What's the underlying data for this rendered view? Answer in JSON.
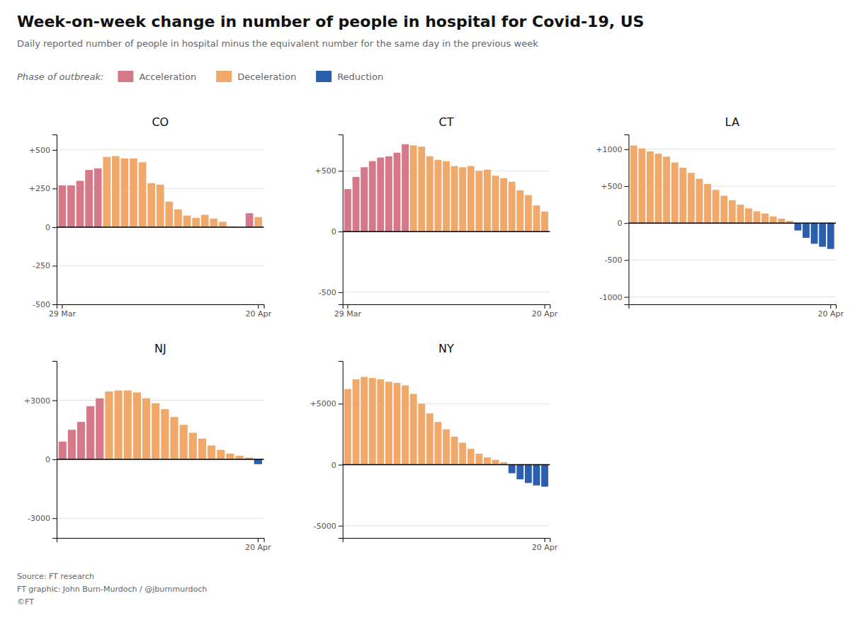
{
  "title": "Week-on-week change in number of people in hospital for Covid-19, US",
  "subtitle": "Daily reported number of people in hospital minus the equivalent number for the same day in the previous week",
  "legend_title": "Phase of outbreak:",
  "legend_entries": [
    {
      "name": "Acceleration",
      "color": "#d4788a"
    },
    {
      "name": "Deceleration",
      "color": "#f0a96a"
    },
    {
      "name": "Reduction",
      "color": "#2b5fad"
    }
  ],
  "source": "Source: FT research\nFT graphic: John Burn-Murdoch / @jburnmurdoch\n©FT",
  "chart_data": [
    {
      "type": "bar",
      "title": "CO",
      "categories": [
        "29 Mar",
        null,
        null,
        null,
        null,
        null,
        null,
        null,
        null,
        null,
        null,
        null,
        null,
        null,
        null,
        null,
        null,
        null,
        null,
        null,
        null,
        null,
        "20 Apr"
      ],
      "values": [
        270,
        270,
        300,
        370,
        380,
        455,
        460,
        445,
        445,
        420,
        285,
        275,
        165,
        115,
        75,
        60,
        80,
        55,
        35,
        5,
        0,
        90,
        65
      ],
      "colors": [
        "#d4788a",
        "#d4788a",
        "#d4788a",
        "#d4788a",
        "#d4788a",
        "#f0a96a",
        "#f0a96a",
        "#f0a96a",
        "#f0a96a",
        "#f0a96a",
        "#f0a96a",
        "#f0a96a",
        "#f0a96a",
        "#f0a96a",
        "#f0a96a",
        "#f0a96a",
        "#f0a96a",
        "#f0a96a",
        "#f0a96a",
        "#f0a96a",
        "#f0a96a",
        "#d4788a",
        "#f0a96a"
      ],
      "ylim": [
        -500,
        600
      ],
      "yticks": [
        -500,
        -250,
        0,
        {
          "value": 250,
          "label": "+250"
        },
        {
          "value": 500,
          "label": "+500"
        }
      ],
      "grid": true
    },
    {
      "type": "bar",
      "title": "CT",
      "categories": [
        "29 Mar",
        null,
        null,
        null,
        null,
        null,
        null,
        null,
        null,
        null,
        null,
        null,
        null,
        null,
        null,
        null,
        null,
        null,
        null,
        null,
        null,
        null,
        null,
        null,
        "20 Apr"
      ],
      "values": [
        350,
        450,
        530,
        580,
        610,
        620,
        650,
        720,
        710,
        700,
        620,
        590,
        580,
        540,
        530,
        540,
        500,
        510,
        460,
        440,
        410,
        340,
        300,
        215,
        165
      ],
      "colors": [
        "#d4788a",
        "#d4788a",
        "#d4788a",
        "#d4788a",
        "#d4788a",
        "#d4788a",
        "#d4788a",
        "#d4788a",
        "#f0a96a",
        "#f0a96a",
        "#f0a96a",
        "#f0a96a",
        "#f0a96a",
        "#f0a96a",
        "#f0a96a",
        "#f0a96a",
        "#f0a96a",
        "#f0a96a",
        "#f0a96a",
        "#f0a96a",
        "#f0a96a",
        "#f0a96a",
        "#f0a96a",
        "#f0a96a",
        "#f0a96a"
      ],
      "ylim": [
        -600,
        800
      ],
      "yticks": [
        -500,
        0,
        {
          "value": 500,
          "label": "+500"
        }
      ],
      "grid": true
    },
    {
      "type": "bar",
      "title": "LA",
      "categories": [
        null,
        null,
        null,
        null,
        null,
        null,
        null,
        null,
        null,
        null,
        null,
        null,
        null,
        null,
        null,
        null,
        null,
        null,
        null,
        null,
        null,
        null,
        null,
        null,
        "20 Apr"
      ],
      "values": [
        1050,
        1010,
        970,
        940,
        900,
        820,
        750,
        680,
        600,
        530,
        450,
        370,
        310,
        250,
        200,
        160,
        130,
        90,
        60,
        30,
        -100,
        -200,
        -280,
        -320,
        -350
      ],
      "colors": [
        "#f0a96a",
        "#f0a96a",
        "#f0a96a",
        "#f0a96a",
        "#f0a96a",
        "#f0a96a",
        "#f0a96a",
        "#f0a96a",
        "#f0a96a",
        "#f0a96a",
        "#f0a96a",
        "#f0a96a",
        "#f0a96a",
        "#f0a96a",
        "#f0a96a",
        "#f0a96a",
        "#f0a96a",
        "#f0a96a",
        "#f0a96a",
        "#f0a96a",
        "#2b5fad",
        "#2b5fad",
        "#2b5fad",
        "#2b5fad",
        "#2b5fad"
      ],
      "ylim": [
        -1100,
        1200
      ],
      "yticks": [
        -1000,
        -500,
        0,
        {
          "value": 500,
          "label": "+500"
        },
        {
          "value": 1000,
          "label": "+1000"
        }
      ],
      "grid": true
    },
    {
      "type": "bar",
      "title": "NJ",
      "categories": [
        null,
        null,
        null,
        null,
        null,
        null,
        null,
        null,
        null,
        null,
        null,
        null,
        null,
        null,
        null,
        null,
        null,
        null,
        null,
        null,
        null,
        "20 Apr"
      ],
      "values": [
        900,
        1500,
        1900,
        2700,
        3100,
        3450,
        3500,
        3500,
        3400,
        3100,
        2850,
        2550,
        2150,
        1750,
        1350,
        1050,
        700,
        480,
        290,
        180,
        90,
        -250
      ],
      "colors": [
        "#d4788a",
        "#d4788a",
        "#d4788a",
        "#d4788a",
        "#d4788a",
        "#f0a96a",
        "#f0a96a",
        "#f0a96a",
        "#f0a96a",
        "#f0a96a",
        "#f0a96a",
        "#f0a96a",
        "#f0a96a",
        "#f0a96a",
        "#f0a96a",
        "#f0a96a",
        "#f0a96a",
        "#f0a96a",
        "#f0a96a",
        "#f0a96a",
        "#f0a96a",
        "#2b5fad"
      ],
      "ylim": [
        -4000,
        5000
      ],
      "yticks": [
        -3000,
        0,
        {
          "value": 3000,
          "label": "+3000"
        }
      ],
      "grid": true
    },
    {
      "type": "bar",
      "title": "NY",
      "categories": [
        null,
        null,
        null,
        null,
        null,
        null,
        null,
        null,
        null,
        null,
        null,
        null,
        null,
        null,
        null,
        null,
        null,
        null,
        null,
        null,
        null,
        null,
        null,
        null,
        "20 Apr"
      ],
      "values": [
        6200,
        7000,
        7200,
        7100,
        7000,
        6800,
        6700,
        6500,
        5800,
        5000,
        4200,
        3500,
        2900,
        2300,
        1800,
        1300,
        900,
        600,
        400,
        200,
        -700,
        -1200,
        -1500,
        -1700,
        -1800
      ],
      "colors": [
        "#f0a96a",
        "#f0a96a",
        "#f0a96a",
        "#f0a96a",
        "#f0a96a",
        "#f0a96a",
        "#f0a96a",
        "#f0a96a",
        "#f0a96a",
        "#f0a96a",
        "#f0a96a",
        "#f0a96a",
        "#f0a96a",
        "#f0a96a",
        "#f0a96a",
        "#f0a96a",
        "#f0a96a",
        "#f0a96a",
        "#f0a96a",
        "#f0a96a",
        "#2b5fad",
        "#2b5fad",
        "#2b5fad",
        "#2b5fad",
        "#2b5fad"
      ],
      "ylim": [
        -6000,
        8500
      ],
      "yticks": [
        -5000,
        0,
        {
          "value": 5000,
          "label": "+5000"
        }
      ],
      "grid": true
    }
  ]
}
